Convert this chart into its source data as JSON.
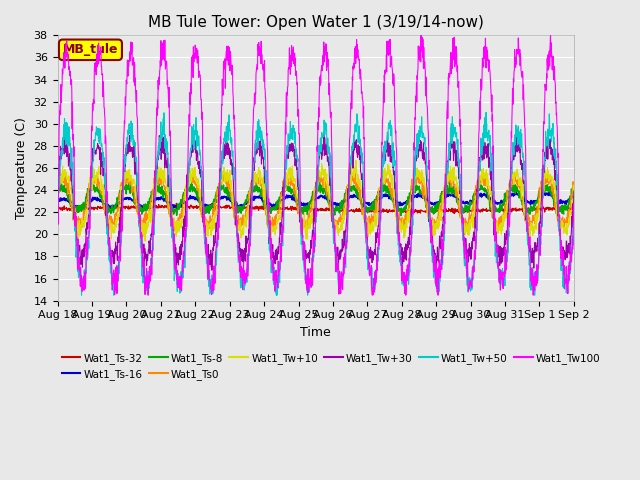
{
  "title": "MB Tule Tower: Open Water 1 (3/19/14-now)",
  "xlabel": "Time",
  "ylabel": "Temperature (C)",
  "ylim": [
    14,
    38
  ],
  "yticks": [
    14,
    16,
    18,
    20,
    22,
    24,
    26,
    28,
    30,
    32,
    34,
    36,
    38
  ],
  "background_color": "#e8e8e8",
  "plot_bg_color": "#e8e8e8",
  "legend_box_label": "MB_tule",
  "legend_box_color": "#ffff00",
  "legend_box_border": "#8b0000",
  "series_colors": {
    "Wat1_Ts-32": "#cc0000",
    "Wat1_Ts-16": "#0000cc",
    "Wat1_Ts-8": "#00aa00",
    "Wat1_Ts0": "#ff8800",
    "Wat1_Tw+10": "#dddd00",
    "Wat1_Tw+30": "#9900aa",
    "Wat1_Tw+50": "#00cccc",
    "Wat1_Tw100": "#ff00ff"
  },
  "x_tick_labels": [
    "Aug 18",
    "Aug 19",
    "Aug 20",
    "Aug 21",
    "Aug 22",
    "Aug 23",
    "Aug 24",
    "Aug 25",
    "Aug 26",
    "Aug 27",
    "Aug 28",
    "Aug 29",
    "Aug 30",
    "Aug 31",
    "Sep 1",
    "Sep 2"
  ],
  "title_fontsize": 11,
  "axis_fontsize": 9,
  "tick_fontsize": 8
}
